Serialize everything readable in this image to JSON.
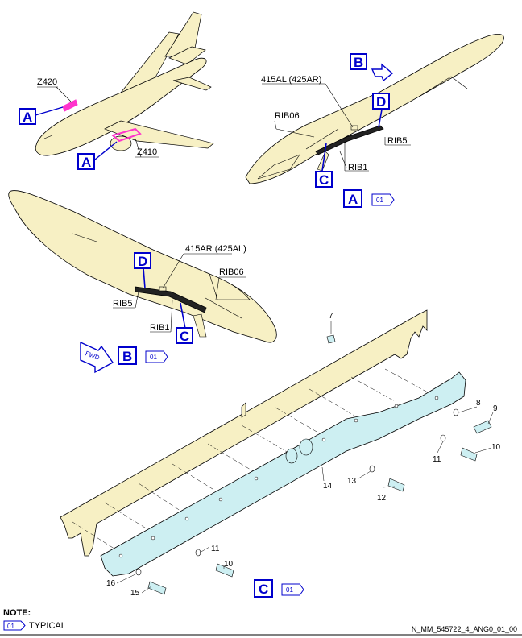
{
  "labels": {
    "z420": "Z420",
    "z410": "Z410",
    "label_415al": "415AL (425AR)",
    "label_415ar": "415AR (425AL)",
    "rib06_top": "RIB06",
    "rib06_bottom": "RIB06",
    "rib5_top": "RIB5",
    "rib5_bottom": "RIB5",
    "rib1_top": "RIB1",
    "rib1_bottom": "RIB1",
    "fwd": "FWD"
  },
  "callouts": {
    "a1": "A",
    "a2": "A",
    "a_view": "A",
    "b1": "B",
    "b_view": "B",
    "c1": "C",
    "c2": "C",
    "c_view": "C",
    "d1": "D",
    "d2": "D"
  },
  "view_refs": {
    "a": "01",
    "b": "01",
    "c": "01"
  },
  "items": {
    "i7": "7",
    "i8": "8",
    "i9": "9",
    "i10a": "10",
    "i10b": "10",
    "i11a": "11",
    "i11b": "11",
    "i12": "12",
    "i13": "13",
    "i14": "14",
    "i15": "15",
    "i16": "16"
  },
  "note": {
    "title": "NOTE:",
    "badge": "01",
    "typical": "TYPICAL"
  },
  "doc_ref": "N_MM_545722_4_ANG0_01_00",
  "colors": {
    "airframe": "#f7f0c4",
    "panel": "#cdeff2",
    "callout": "#0000cc",
    "highlight": "#ff33cc"
  }
}
